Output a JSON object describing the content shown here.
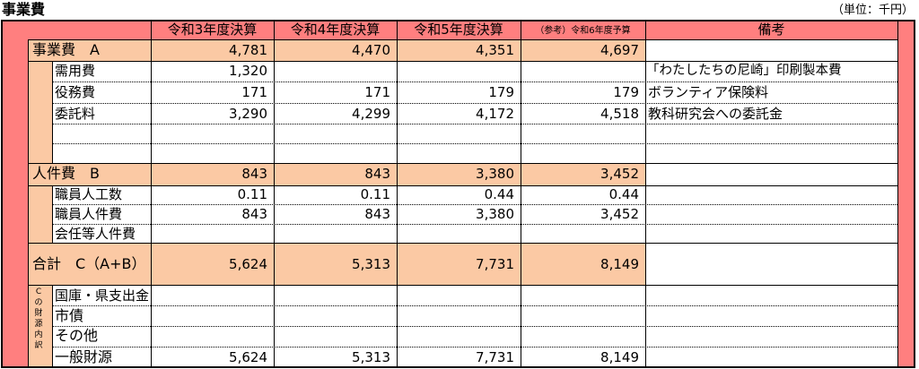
{
  "title": "事業費",
  "unit": "（単位：千円）",
  "columns": [
    "令和3年度決算",
    "令和4年度決算",
    "令和5年度決算",
    "（参考）令和6年度予算",
    "備考"
  ],
  "rows": {
    "jigyohi": {
      "label": "事業費　A",
      "values": [
        "4,781",
        "4,470",
        "4,351",
        "4,697"
      ],
      "note": ""
    },
    "juyohi": {
      "label": "需用費",
      "values": [
        "1,320",
        "",
        "",
        ""
      ],
      "note": "「わたしたちの尼崎」印刷製本費"
    },
    "ekimuhi": {
      "label": "役務費",
      "values": [
        "171",
        "171",
        "179",
        "179"
      ],
      "note": "ボランティア保険料"
    },
    "itakuryo": {
      "label": "委託料",
      "values": [
        "3,290",
        "4,299",
        "4,172",
        "4,518"
      ],
      "note": "教科研究会への委託金"
    },
    "jinkenhi": {
      "label": "人件費　B",
      "values": [
        "843",
        "843",
        "3,380",
        "3,452"
      ],
      "note": ""
    },
    "shokuinsu": {
      "label": "職員人工数",
      "values": [
        "0.11",
        "0.11",
        "0.44",
        "0.44"
      ],
      "note": ""
    },
    "shokuinjk": {
      "label": "職員人件費",
      "values": [
        "843",
        "843",
        "3,380",
        "3,452"
      ],
      "note": ""
    },
    "kainin": {
      "label": "会任等人件費",
      "values": [
        "",
        "",
        "",
        ""
      ],
      "note": ""
    },
    "gokei": {
      "label": "合計　C（A+B）",
      "values": [
        "5,624",
        "5,313",
        "7,731",
        "8,149"
      ],
      "note": ""
    },
    "kokko": {
      "label": "国庫・県支出金",
      "values": [
        "",
        "",
        "",
        ""
      ],
      "note": ""
    },
    "shisai": {
      "label": "市債",
      "values": [
        "",
        "",
        "",
        ""
      ],
      "note": ""
    },
    "sonota": {
      "label": "その他",
      "values": [
        "",
        "",
        "",
        ""
      ],
      "note": ""
    },
    "ippan": {
      "label": "一般財源",
      "values": [
        "5,624",
        "5,313",
        "7,731",
        "8,149"
      ],
      "note": ""
    }
  },
  "zaigen_label": [
    "C",
    "の",
    "財",
    "源",
    "内",
    "訳"
  ],
  "colors": {
    "header": "#ff7f7f",
    "highlight": "#fbc9a4"
  }
}
